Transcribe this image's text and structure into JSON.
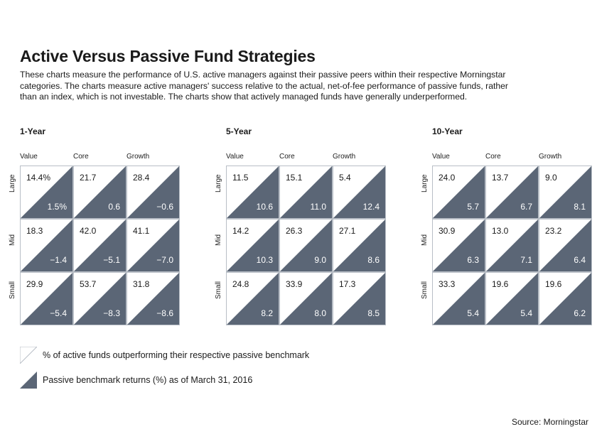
{
  "header": {
    "title": "Active Versus Passive Fund Strategies",
    "subtitle": "These charts measure the performance of U.S. active managers against their passive peers within their respective Morningstar categories. The charts measure active managers' success relative to the actual, net-of-fee performance of passive funds, rather than an index, which is not investable. The charts show that actively managed funds have generally underperformed."
  },
  "colors": {
    "dark": "#5b6676",
    "border": "#b8bec6",
    "light": "#ffffff"
  },
  "chart_data": [
    {
      "type": "heatmap",
      "title": "1-Year",
      "columns": [
        "Value",
        "Core",
        "Growth"
      ],
      "rows": [
        "Large",
        "Mid",
        "Small"
      ],
      "pct_outperforming": [
        [
          "14.4%",
          "21.7",
          "28.4"
        ],
        [
          "18.3",
          "42.0",
          "41.1"
        ],
        [
          "29.9",
          "53.7",
          "31.8"
        ]
      ],
      "benchmark_returns": [
        [
          "1.5%",
          "0.6",
          "−0.6"
        ],
        [
          "−1.4",
          "−5.1",
          "−7.0"
        ],
        [
          "−5.4",
          "−8.3",
          "−8.6"
        ]
      ]
    },
    {
      "type": "heatmap",
      "title": "5-Year",
      "columns": [
        "Value",
        "Core",
        "Growth"
      ],
      "rows": [
        "Large",
        "Mid",
        "Small"
      ],
      "pct_outperforming": [
        [
          "11.5",
          "15.1",
          "5.4"
        ],
        [
          "14.2",
          "26.3",
          "27.1"
        ],
        [
          "24.8",
          "33.9",
          "17.3"
        ]
      ],
      "benchmark_returns": [
        [
          "10.6",
          "11.0",
          "12.4"
        ],
        [
          "10.3",
          "9.0",
          "8.6"
        ],
        [
          "8.2",
          "8.0",
          "8.5"
        ]
      ]
    },
    {
      "type": "heatmap",
      "title": "10-Year",
      "columns": [
        "Value",
        "Core",
        "Growth"
      ],
      "rows": [
        "Large",
        "Mid",
        "Small"
      ],
      "pct_outperforming": [
        [
          "24.0",
          "13.7",
          "9.0"
        ],
        [
          "30.9",
          "13.0",
          "23.2"
        ],
        [
          "33.3",
          "19.6",
          "19.6"
        ]
      ],
      "benchmark_returns": [
        [
          "5.7",
          "6.7",
          "8.1"
        ],
        [
          "6.3",
          "7.1",
          "6.4"
        ],
        [
          "5.4",
          "5.4",
          "6.2"
        ]
      ]
    }
  ],
  "legend": {
    "light": "% of active funds outperforming their respective passive benchmark",
    "dark": "Passive benchmark returns (%) as of March 31, 2016"
  },
  "source": "Source: Morningstar"
}
